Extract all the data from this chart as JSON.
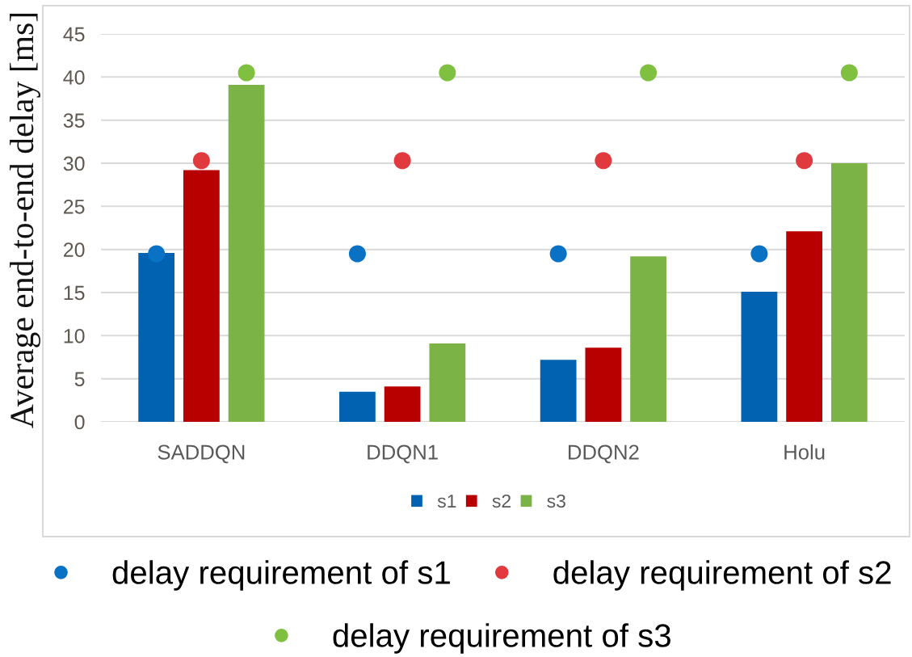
{
  "chart_data": {
    "type": "bar",
    "ylabel": "Average end-to-end delay [ms]",
    "categories": [
      "SADDQN",
      "DDQN1",
      "DDQN2",
      "Holu"
    ],
    "ylim": [
      0,
      45
    ],
    "yticks": [
      0,
      5,
      10,
      15,
      20,
      25,
      30,
      35,
      40,
      45
    ],
    "grid": "y",
    "legend": "bottom",
    "marker": "circle",
    "series": [
      {
        "name": "s1",
        "color": "#0062b0",
        "values": [
          19.6,
          3.5,
          7.2,
          15.1
        ]
      },
      {
        "name": "s2",
        "color": "#b80000",
        "values": [
          29.2,
          4.1,
          8.6,
          22.1
        ]
      },
      {
        "name": "s3",
        "color": "#7bb346",
        "values": [
          39.1,
          9.1,
          19.2,
          30.0
        ]
      },
      {
        "name": "delay requirement of s1",
        "type": "scatter",
        "color": "#0a72c4",
        "x": [
          "SADDQN",
          "DDQN1",
          "DDQN2",
          "Holu"
        ],
        "values": [
          19.5,
          19.5,
          19.5,
          19.5
        ]
      },
      {
        "name": "delay requirement of s2",
        "type": "scatter",
        "color": "#e0393e",
        "x": [
          "SADDQN",
          "DDQN1",
          "DDQN2",
          "Holu"
        ],
        "values": [
          30.3,
          30.3,
          30.3,
          30.3
        ]
      },
      {
        "name": "delay requirement of s3",
        "type": "scatter",
        "color": "#80c040",
        "x": [
          "SADDQN",
          "DDQN1",
          "DDQN2",
          "Holu"
        ],
        "values": [
          40.5,
          40.5,
          40.5,
          40.5
        ]
      }
    ]
  }
}
